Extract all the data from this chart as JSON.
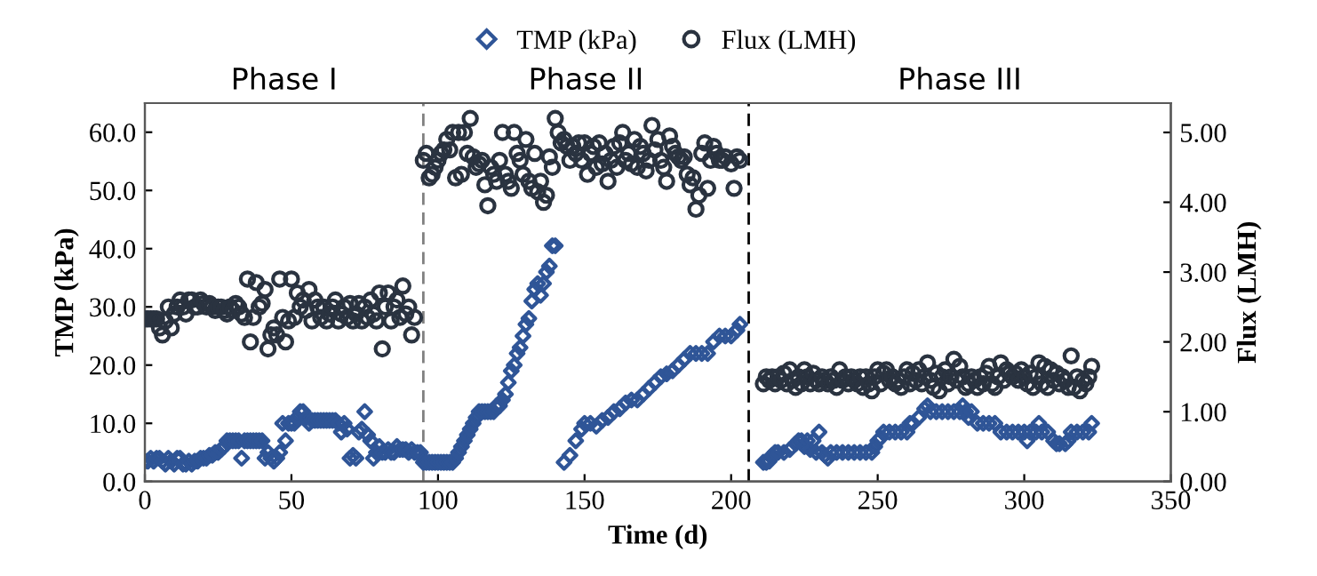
{
  "chart_data": {
    "type": "scatter",
    "xlabel": "Time (d)",
    "ylabel": "TMP (kPa)",
    "y2label": "Flux (LMH)",
    "annotations": [
      "Phase I",
      "Phase II",
      "Phase III"
    ],
    "xlim": [
      0,
      350
    ],
    "xticks": [
      0,
      50,
      100,
      150,
      200,
      250,
      300,
      350
    ],
    "ylim": [
      0,
      65
    ],
    "yticks": [
      {
        "value": 0,
        "label": "0.0"
      },
      {
        "value": 10,
        "label": "10.0"
      },
      {
        "value": 20,
        "label": "20.0"
      },
      {
        "value": 30,
        "label": "30.0"
      },
      {
        "value": 40,
        "label": "40.0"
      },
      {
        "value": 50,
        "label": "50.0"
      },
      {
        "value": 60,
        "label": "60.0"
      }
    ],
    "y2lim": [
      0,
      5.42
    ],
    "y2ticks": [
      {
        "value": 0,
        "label": "0.00"
      },
      {
        "value": 1,
        "label": "1.00"
      },
      {
        "value": 2,
        "label": "2.00"
      },
      {
        "value": 3,
        "label": "3.00"
      },
      {
        "value": 4,
        "label": "4.00"
      },
      {
        "value": 5,
        "label": "5.00"
      }
    ],
    "ref_lines": [
      {
        "axis": "x",
        "value": 95,
        "color": "#808080",
        "line_style": "dashed"
      },
      {
        "axis": "x",
        "value": 206,
        "color": "#000000",
        "line_style": "dashed"
      }
    ],
    "legend": "top",
    "grid": false,
    "series": [
      {
        "name": "TMP (kPa)",
        "color": "#2f5597",
        "marker": "diamond",
        "x": [
          0,
          1,
          2,
          3,
          4,
          5,
          6,
          7,
          8,
          9,
          10,
          11,
          12,
          13,
          14,
          15,
          16,
          17,
          18,
          19,
          20,
          21,
          22,
          23,
          24,
          25,
          26,
          27,
          28,
          29,
          30,
          31,
          32,
          33,
          34,
          35,
          36,
          37,
          38,
          39,
          40,
          41,
          42,
          43,
          44,
          45,
          46,
          47,
          48,
          49,
          50,
          51,
          52,
          53,
          54,
          55,
          56,
          57,
          58,
          59,
          60,
          61,
          62,
          63,
          64,
          65,
          66,
          67,
          68,
          69,
          70,
          71,
          72,
          73,
          74,
          75,
          76,
          77,
          78,
          79,
          80,
          81,
          82,
          83,
          84,
          85,
          86,
          87,
          88,
          89,
          90,
          91,
          92,
          93,
          94,
          95,
          96,
          97,
          98,
          99,
          100,
          101,
          102,
          103,
          104,
          105,
          106,
          107,
          108,
          109,
          110,
          111,
          112,
          113,
          114,
          115,
          116,
          117,
          118,
          119,
          120,
          121,
          122,
          123,
          124,
          125,
          126,
          127,
          128,
          129,
          130,
          131,
          132,
          133,
          134,
          135,
          136,
          137,
          138,
          139,
          140,
          143,
          145,
          147,
          149,
          150,
          152,
          154,
          156,
          158,
          160,
          162,
          164,
          166,
          168,
          170,
          172,
          174,
          176,
          178,
          180,
          182,
          184,
          186,
          188,
          190,
          192,
          194,
          196,
          198,
          200,
          202,
          203,
          211,
          212,
          213,
          214,
          215,
          216,
          218,
          220,
          222,
          223,
          224,
          225,
          226,
          227,
          228,
          229,
          230,
          231,
          232,
          233,
          234,
          236,
          238,
          240,
          242,
          244,
          246,
          248,
          249,
          250,
          251,
          252,
          254,
          256,
          258,
          260,
          261,
          262,
          264,
          266,
          267,
          268,
          270,
          272,
          274,
          276,
          278,
          279,
          280,
          281,
          282,
          284,
          286,
          288,
          290,
          292,
          294,
          296,
          298,
          300,
          301,
          302,
          304,
          305,
          306,
          308,
          310,
          311,
          312,
          314,
          315,
          316,
          318,
          320,
          322,
          323
        ],
        "values": [
          3.5,
          3.5,
          4,
          3.5,
          4,
          4,
          3.5,
          3,
          4,
          3.5,
          3,
          4,
          4,
          3,
          3,
          3.5,
          3,
          3.5,
          3.5,
          4,
          4,
          4,
          4.5,
          4.5,
          5,
          5,
          5.5,
          6,
          7,
          7,
          7,
          7,
          7,
          4,
          7,
          7,
          7,
          7,
          7,
          7,
          7,
          4,
          5,
          4,
          3.5,
          4,
          5,
          10,
          7,
          10,
          10,
          10,
          11,
          12,
          12,
          11,
          10,
          10.5,
          10.5,
          10.5,
          10.5,
          10.5,
          10.5,
          10.5,
          10.5,
          10.5,
          10,
          8.5,
          10,
          9,
          4,
          4.5,
          4,
          8.5,
          9,
          12,
          8,
          7,
          4,
          5,
          6,
          5,
          5,
          5.5,
          5,
          5,
          6,
          5.5,
          5.5,
          5.5,
          5,
          5.5,
          5,
          5,
          5,
          3.3,
          3.3,
          3.3,
          3.3,
          3.3,
          3.3,
          3.3,
          3.3,
          3.3,
          3.3,
          3.3,
          4,
          5,
          6,
          7,
          8,
          9,
          10,
          11,
          12,
          12,
          12,
          12,
          12,
          12,
          13,
          13,
          14,
          15,
          17,
          19,
          20,
          22,
          23,
          25,
          27,
          28,
          31,
          33,
          34,
          32,
          34,
          36,
          37,
          40.5,
          40.5,
          3.3,
          4.5,
          7,
          9,
          10,
          10,
          9.5,
          10.5,
          11,
          12,
          12.5,
          13.5,
          14,
          14,
          15,
          16,
          17,
          18,
          18.5,
          19,
          20,
          21,
          22,
          22,
          22,
          22,
          24,
          25,
          25,
          25,
          26,
          27,
          3.3,
          3.3,
          3.5,
          4.5,
          5,
          5,
          5,
          5.5,
          6.5,
          7,
          7,
          6,
          7,
          5.5,
          7,
          5,
          8.5,
          5,
          4.5,
          4,
          5,
          5,
          5,
          5,
          5,
          5,
          5,
          5,
          6,
          7,
          7.5,
          8.5,
          8.5,
          8.5,
          8.5,
          8.5,
          10,
          10,
          11,
          12.5,
          13,
          12,
          12,
          12,
          12,
          12,
          12,
          13,
          12,
          11,
          12,
          10,
          10,
          10,
          10,
          8.5,
          8.5,
          8.5,
          8.5,
          8.5,
          7,
          8.5,
          8.5,
          10,
          8.5,
          8.5,
          7,
          6.5,
          6.5,
          6.5,
          7,
          8.5,
          8.5,
          8.5,
          8.5,
          10
        ]
      },
      {
        "name": "Flux (LMH)",
        "color": "#2a3340",
        "marker": "circle",
        "axis": "y2",
        "x": [
          0,
          1,
          2,
          3,
          4,
          5,
          6,
          7,
          8,
          9,
          10,
          11,
          12,
          13,
          14,
          15,
          16,
          17,
          18,
          19,
          20,
          21,
          22,
          23,
          24,
          25,
          26,
          27,
          28,
          29,
          30,
          31,
          32,
          33,
          34,
          35,
          36,
          37,
          38,
          39,
          40,
          41,
          42,
          43,
          44,
          45,
          46,
          47,
          48,
          49,
          50,
          51,
          52,
          53,
          54,
          55,
          56,
          57,
          58,
          59,
          60,
          61,
          62,
          63,
          64,
          65,
          66,
          67,
          68,
          69,
          70,
          71,
          72,
          73,
          74,
          75,
          76,
          77,
          78,
          79,
          80,
          81,
          82,
          83,
          84,
          85,
          86,
          87,
          88,
          89,
          90,
          91,
          92,
          95,
          96,
          97,
          98,
          99,
          100,
          101,
          102,
          103,
          104,
          105,
          106,
          107,
          108,
          109,
          110,
          111,
          112,
          113,
          114,
          115,
          116,
          117,
          118,
          119,
          120,
          121,
          122,
          123,
          124,
          125,
          126,
          127,
          128,
          129,
          130,
          131,
          132,
          133,
          134,
          135,
          136,
          137,
          138,
          139,
          140,
          141,
          142,
          143,
          144,
          145,
          146,
          147,
          148,
          149,
          150,
          151,
          152,
          153,
          154,
          155,
          156,
          157,
          158,
          159,
          160,
          161,
          162,
          163,
          164,
          165,
          166,
          167,
          168,
          169,
          170,
          171,
          172,
          173,
          174,
          175,
          176,
          177,
          178,
          179,
          180,
          181,
          182,
          183,
          184,
          185,
          186,
          187,
          188,
          189,
          190,
          191,
          192,
          193,
          194,
          195,
          196,
          197,
          198,
          200,
          201,
          202,
          203,
          211,
          212,
          213,
          214,
          215,
          216,
          217,
          218,
          219,
          220,
          221,
          222,
          223,
          224,
          225,
          226,
          227,
          228,
          229,
          230,
          231,
          232,
          233,
          234,
          235,
          236,
          237,
          238,
          239,
          240,
          241,
          242,
          243,
          244,
          245,
          246,
          247,
          248,
          249,
          250,
          251,
          252,
          253,
          254,
          255,
          256,
          257,
          258,
          259,
          260,
          261,
          262,
          263,
          264,
          265,
          266,
          267,
          268,
          269,
          270,
          271,
          272,
          273,
          274,
          275,
          276,
          277,
          278,
          279,
          280,
          281,
          282,
          283,
          284,
          285,
          286,
          287,
          288,
          289,
          290,
          291,
          292,
          293,
          294,
          295,
          296,
          297,
          298,
          299,
          300,
          301,
          302,
          303,
          304,
          305,
          306,
          307,
          308,
          309,
          310,
          311,
          312,
          313,
          314,
          315,
          316,
          317,
          318,
          319,
          320,
          321,
          322,
          323
        ],
        "values": [
          2.33,
          2.33,
          2.33,
          2.33,
          2.33,
          2.2,
          2.1,
          2.3,
          2.5,
          2.2,
          2.4,
          2.5,
          2.6,
          2.5,
          2.4,
          2.6,
          2.6,
          2.5,
          2.5,
          2.6,
          2.55,
          2.5,
          2.55,
          2.5,
          2.45,
          2.5,
          2.5,
          2.45,
          2.4,
          2.5,
          2.45,
          2.55,
          2.5,
          2.4,
          2.35,
          2.9,
          2.0,
          2.35,
          2.85,
          2.5,
          2.55,
          2.75,
          1.9,
          2.1,
          2.2,
          2.1,
          2.9,
          2.35,
          2.0,
          2.3,
          2.9,
          2.35,
          2.7,
          2.5,
          2.6,
          2.45,
          2.75,
          2.3,
          2.6,
          2.5,
          2.35,
          2.5,
          2.3,
          2.4,
          2.5,
          2.6,
          2.3,
          2.4,
          2.5,
          2.35,
          2.55,
          2.3,
          2.4,
          2.55,
          2.3,
          2.5,
          2.35,
          2.6,
          2.4,
          2.3,
          2.7,
          1.9,
          2.5,
          2.7,
          2.3,
          2.5,
          2.6,
          2.35,
          2.8,
          2.4,
          2.5,
          2.1,
          2.35,
          4.6,
          4.7,
          4.35,
          4.4,
          4.5,
          4.6,
          4.7,
          4.75,
          4.9,
          4.75,
          5.0,
          4.35,
          5.0,
          4.4,
          5.0,
          4.7,
          5.2,
          4.65,
          4.5,
          4.55,
          4.6,
          4.25,
          3.95,
          4.5,
          4.4,
          4.3,
          4.6,
          5.0,
          4.4,
          4.3,
          4.2,
          5.0,
          4.7,
          4.6,
          4.4,
          4.9,
          4.3,
          4.2,
          4.7,
          4.15,
          4.3,
          4.0,
          4.1,
          4.65,
          4.5,
          5.2,
          5.0,
          4.85,
          4.9,
          4.8,
          4.6,
          4.8,
          4.7,
          4.85,
          4.6,
          4.85,
          4.4,
          4.7,
          4.8,
          4.5,
          4.85,
          4.55,
          4.7,
          4.3,
          4.6,
          4.8,
          4.5,
          4.85,
          5.0,
          4.6,
          4.7,
          4.55,
          4.9,
          4.5,
          4.8,
          4.7,
          4.45,
          4.6,
          5.1,
          4.75,
          4.9,
          4.6,
          4.5,
          4.3,
          4.95,
          4.8,
          4.7,
          4.65,
          4.6,
          4.65,
          4.4,
          4.25,
          4.35,
          3.9,
          4.1,
          4.7,
          4.85,
          4.2,
          4.6,
          4.8,
          4.7,
          4.6,
          4.6,
          4.65,
          4.55,
          4.2,
          4.65,
          4.6,
          1.4,
          1.5,
          1.45,
          1.5,
          1.4,
          1.5,
          1.45,
          1.55,
          1.4,
          1.6,
          1.45,
          1.35,
          1.5,
          1.4,
          1.6,
          1.5,
          1.4,
          1.55,
          1.45,
          1.4,
          1.5,
          1.45,
          1.4,
          1.5,
          1.45,
          1.35,
          1.6,
          1.45,
          1.5,
          1.4,
          1.5,
          1.45,
          1.4,
          1.5,
          1.35,
          1.5,
          1.4,
          1.3,
          1.5,
          1.6,
          1.4,
          1.55,
          1.6,
          1.45,
          1.5,
          1.4,
          1.45,
          1.35,
          1.5,
          1.6,
          1.4,
          1.55,
          1.45,
          1.6,
          1.4,
          1.5,
          1.7,
          1.45,
          1.35,
          1.55,
          1.3,
          1.5,
          1.6,
          1.4,
          1.5,
          1.75,
          1.45,
          1.65,
          1.5,
          1.35,
          1.4,
          1.5,
          1.45,
          1.35,
          1.5,
          1.4,
          1.55,
          1.65,
          1.4,
          1.35,
          1.5,
          1.7,
          1.45,
          1.6,
          1.55,
          1.5,
          1.55,
          1.45,
          1.6,
          1.5,
          1.4,
          1.55,
          1.35,
          1.5,
          1.7,
          1.4,
          1.65,
          1.35,
          1.6,
          1.45,
          1.55,
          1.4,
          1.5,
          1.45,
          1.35,
          1.8,
          1.35,
          1.5,
          1.3,
          1.45,
          1.4,
          1.5,
          1.65
        ]
      }
    ]
  }
}
